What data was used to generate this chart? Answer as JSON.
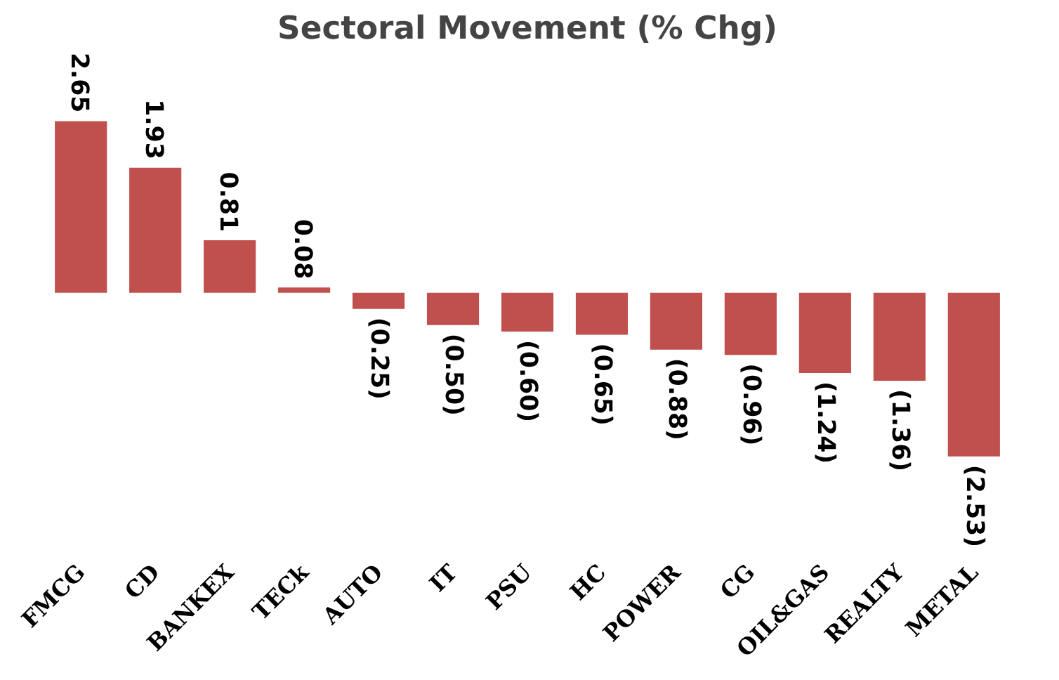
{
  "chart_data": {
    "type": "bar",
    "title": "Sectoral Movement (% Chg)",
    "categories": [
      "FMCG",
      "CD",
      "BANKEX",
      "TECk",
      "AUTO",
      "IT",
      "PSU",
      "HC",
      "POWER",
      "CG",
      "OIL&GAS",
      "REALTY",
      "METAL"
    ],
    "values": [
      2.65,
      1.93,
      0.81,
      0.08,
      -0.25,
      -0.5,
      -0.6,
      -0.65,
      -0.88,
      -0.96,
      -1.24,
      -1.36,
      -2.53
    ],
    "value_labels": [
      "2.65",
      "1.93",
      "0.81",
      "0.08",
      "(0.25)",
      "(0.50)",
      "(0.60)",
      "(0.65)",
      "(0.88)",
      "(0.96)",
      "(1.24)",
      "(1.36)",
      "(2.53)"
    ],
    "color": "#c0504d"
  }
}
